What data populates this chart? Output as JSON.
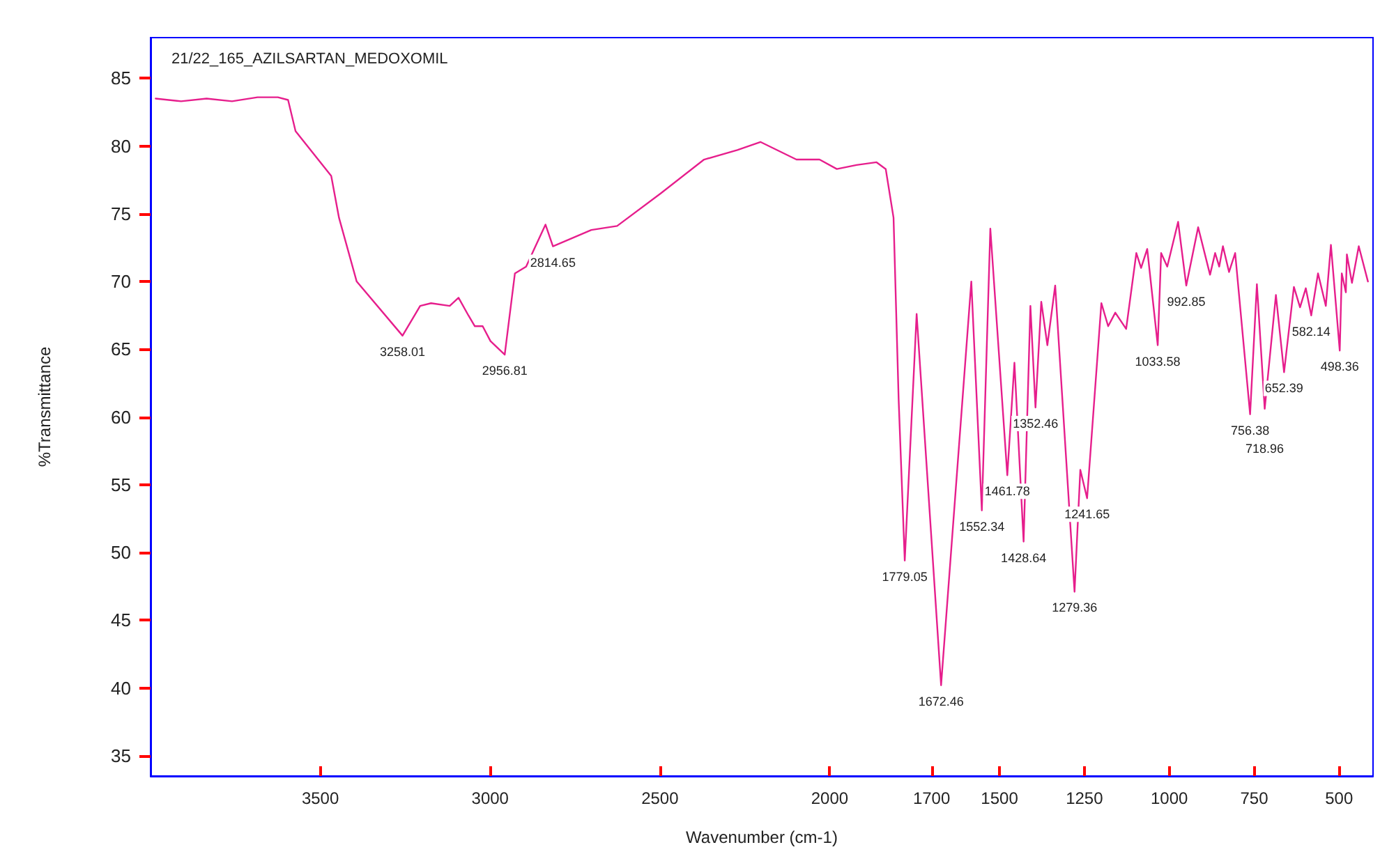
{
  "chart_data": {
    "type": "line",
    "title": "21/22_165_AZILSARTAN_MEDOXOMIL",
    "xlabel": "Wavenumber (cm-1)",
    "ylabel": "%Transmittance",
    "x": [
      3985,
      3910,
      3835,
      3760,
      3685,
      3625,
      3595,
      3573,
      3468,
      3445,
      3393,
      3258,
      3206,
      3174,
      3119,
      3093,
      3064,
      3045,
      3022,
      2999,
      2957,
      2927,
      2894,
      2837,
      2815,
      2702,
      2626,
      2498,
      2370,
      2272,
      2204,
      2098,
      2030,
      1979,
      1921,
      1862,
      1835,
      1812,
      1797,
      1779,
      1744,
      1672,
      1583,
      1552,
      1527,
      1477,
      1456,
      1429,
      1409,
      1394,
      1377,
      1359,
      1336,
      1279,
      1262,
      1242,
      1200,
      1180,
      1159,
      1127,
      1097,
      1083,
      1065,
      1034,
      1024,
      1006,
      974,
      950,
      915,
      880,
      865,
      853,
      842,
      824,
      806,
      762,
      742,
      719,
      686,
      662,
      633,
      615,
      598,
      582,
      562,
      539,
      524,
      498,
      492,
      480,
      477,
      462,
      442,
      415
    ],
    "series": [
      {
        "color": "#e61e8c",
        "values": [
          83.5,
          83.3,
          83.5,
          83.3,
          83.6,
          83.6,
          83.4,
          81.1,
          77.8,
          74.7,
          70.0,
          66.0,
          68.2,
          68.4,
          68.2,
          68.8,
          67.5,
          66.7,
          66.7,
          65.6,
          64.6,
          70.6,
          71.1,
          74.2,
          72.6,
          73.8,
          74.1,
          76.5,
          79.0,
          79.7,
          80.3,
          79.0,
          79.0,
          78.3,
          78.6,
          78.8,
          78.3,
          74.7,
          61.3,
          49.4,
          67.6,
          40.2,
          70.0,
          53.1,
          73.9,
          55.7,
          64.0,
          50.8,
          68.2,
          60.7,
          68.5,
          65.3,
          69.7,
          47.1,
          56.1,
          54.0,
          68.4,
          66.7,
          67.7,
          66.5,
          72.1,
          71.0,
          72.4,
          65.3,
          72.1,
          71.1,
          74.4,
          69.7,
          74.0,
          70.5,
          72.1,
          71.1,
          72.6,
          70.7,
          72.1,
          60.2,
          69.8,
          60.6,
          69.0,
          63.3,
          69.6,
          68.1,
          69.5,
          67.5,
          70.6,
          68.2,
          72.7,
          64.9,
          70.6,
          69.2,
          72.0,
          69.9,
          72.6,
          70.0
        ]
      }
    ],
    "xlim": [
      4000,
      400
    ],
    "xticks": [
      3500,
      3000,
      2500,
      2000,
      1700,
      1500,
      1250,
      1000,
      750,
      500
    ],
    "ylim": [
      33.5,
      88
    ],
    "yticks": [
      35,
      40,
      45,
      50,
      55,
      60,
      65,
      70,
      75,
      80,
      85
    ],
    "grid": false,
    "marker": "none",
    "line_style": "solid",
    "annotations": [
      {
        "text": "3258.01",
        "x": 3258,
        "y": 66.0
      },
      {
        "text": "2956.81",
        "x": 2957,
        "y": 64.6
      },
      {
        "text": "2814.65",
        "x": 2815,
        "y": 72.6
      },
      {
        "text": "1779.05",
        "x": 1779,
        "y": 49.4
      },
      {
        "text": "1672.46",
        "x": 1672,
        "y": 40.2
      },
      {
        "text": "1552.34",
        "x": 1552,
        "y": 53.1
      },
      {
        "text": "1461.78",
        "x": 1477,
        "y": 55.7
      },
      {
        "text": "1428.64",
        "x": 1429,
        "y": 50.8
      },
      {
        "text": "1352.46",
        "x": 1394,
        "y": 60.7
      },
      {
        "text": "1279.36",
        "x": 1279,
        "y": 47.1
      },
      {
        "text": "1241.65",
        "x": 1242,
        "y": 54.0
      },
      {
        "text": "1033.58",
        "x": 1034,
        "y": 65.3
      },
      {
        "text": "992.85",
        "x": 950,
        "y": 69.7
      },
      {
        "text": "756.38",
        "x": 762,
        "y": 60.2
      },
      {
        "text": "718.96",
        "x": 719,
        "y": 60.6
      },
      {
        "text": "652.39",
        "x": 662,
        "y": 63.3
      },
      {
        "text": "582.14",
        "x": 582,
        "y": 67.5
      },
      {
        "text": "498.36",
        "x": 498,
        "y": 64.9
      }
    ]
  }
}
